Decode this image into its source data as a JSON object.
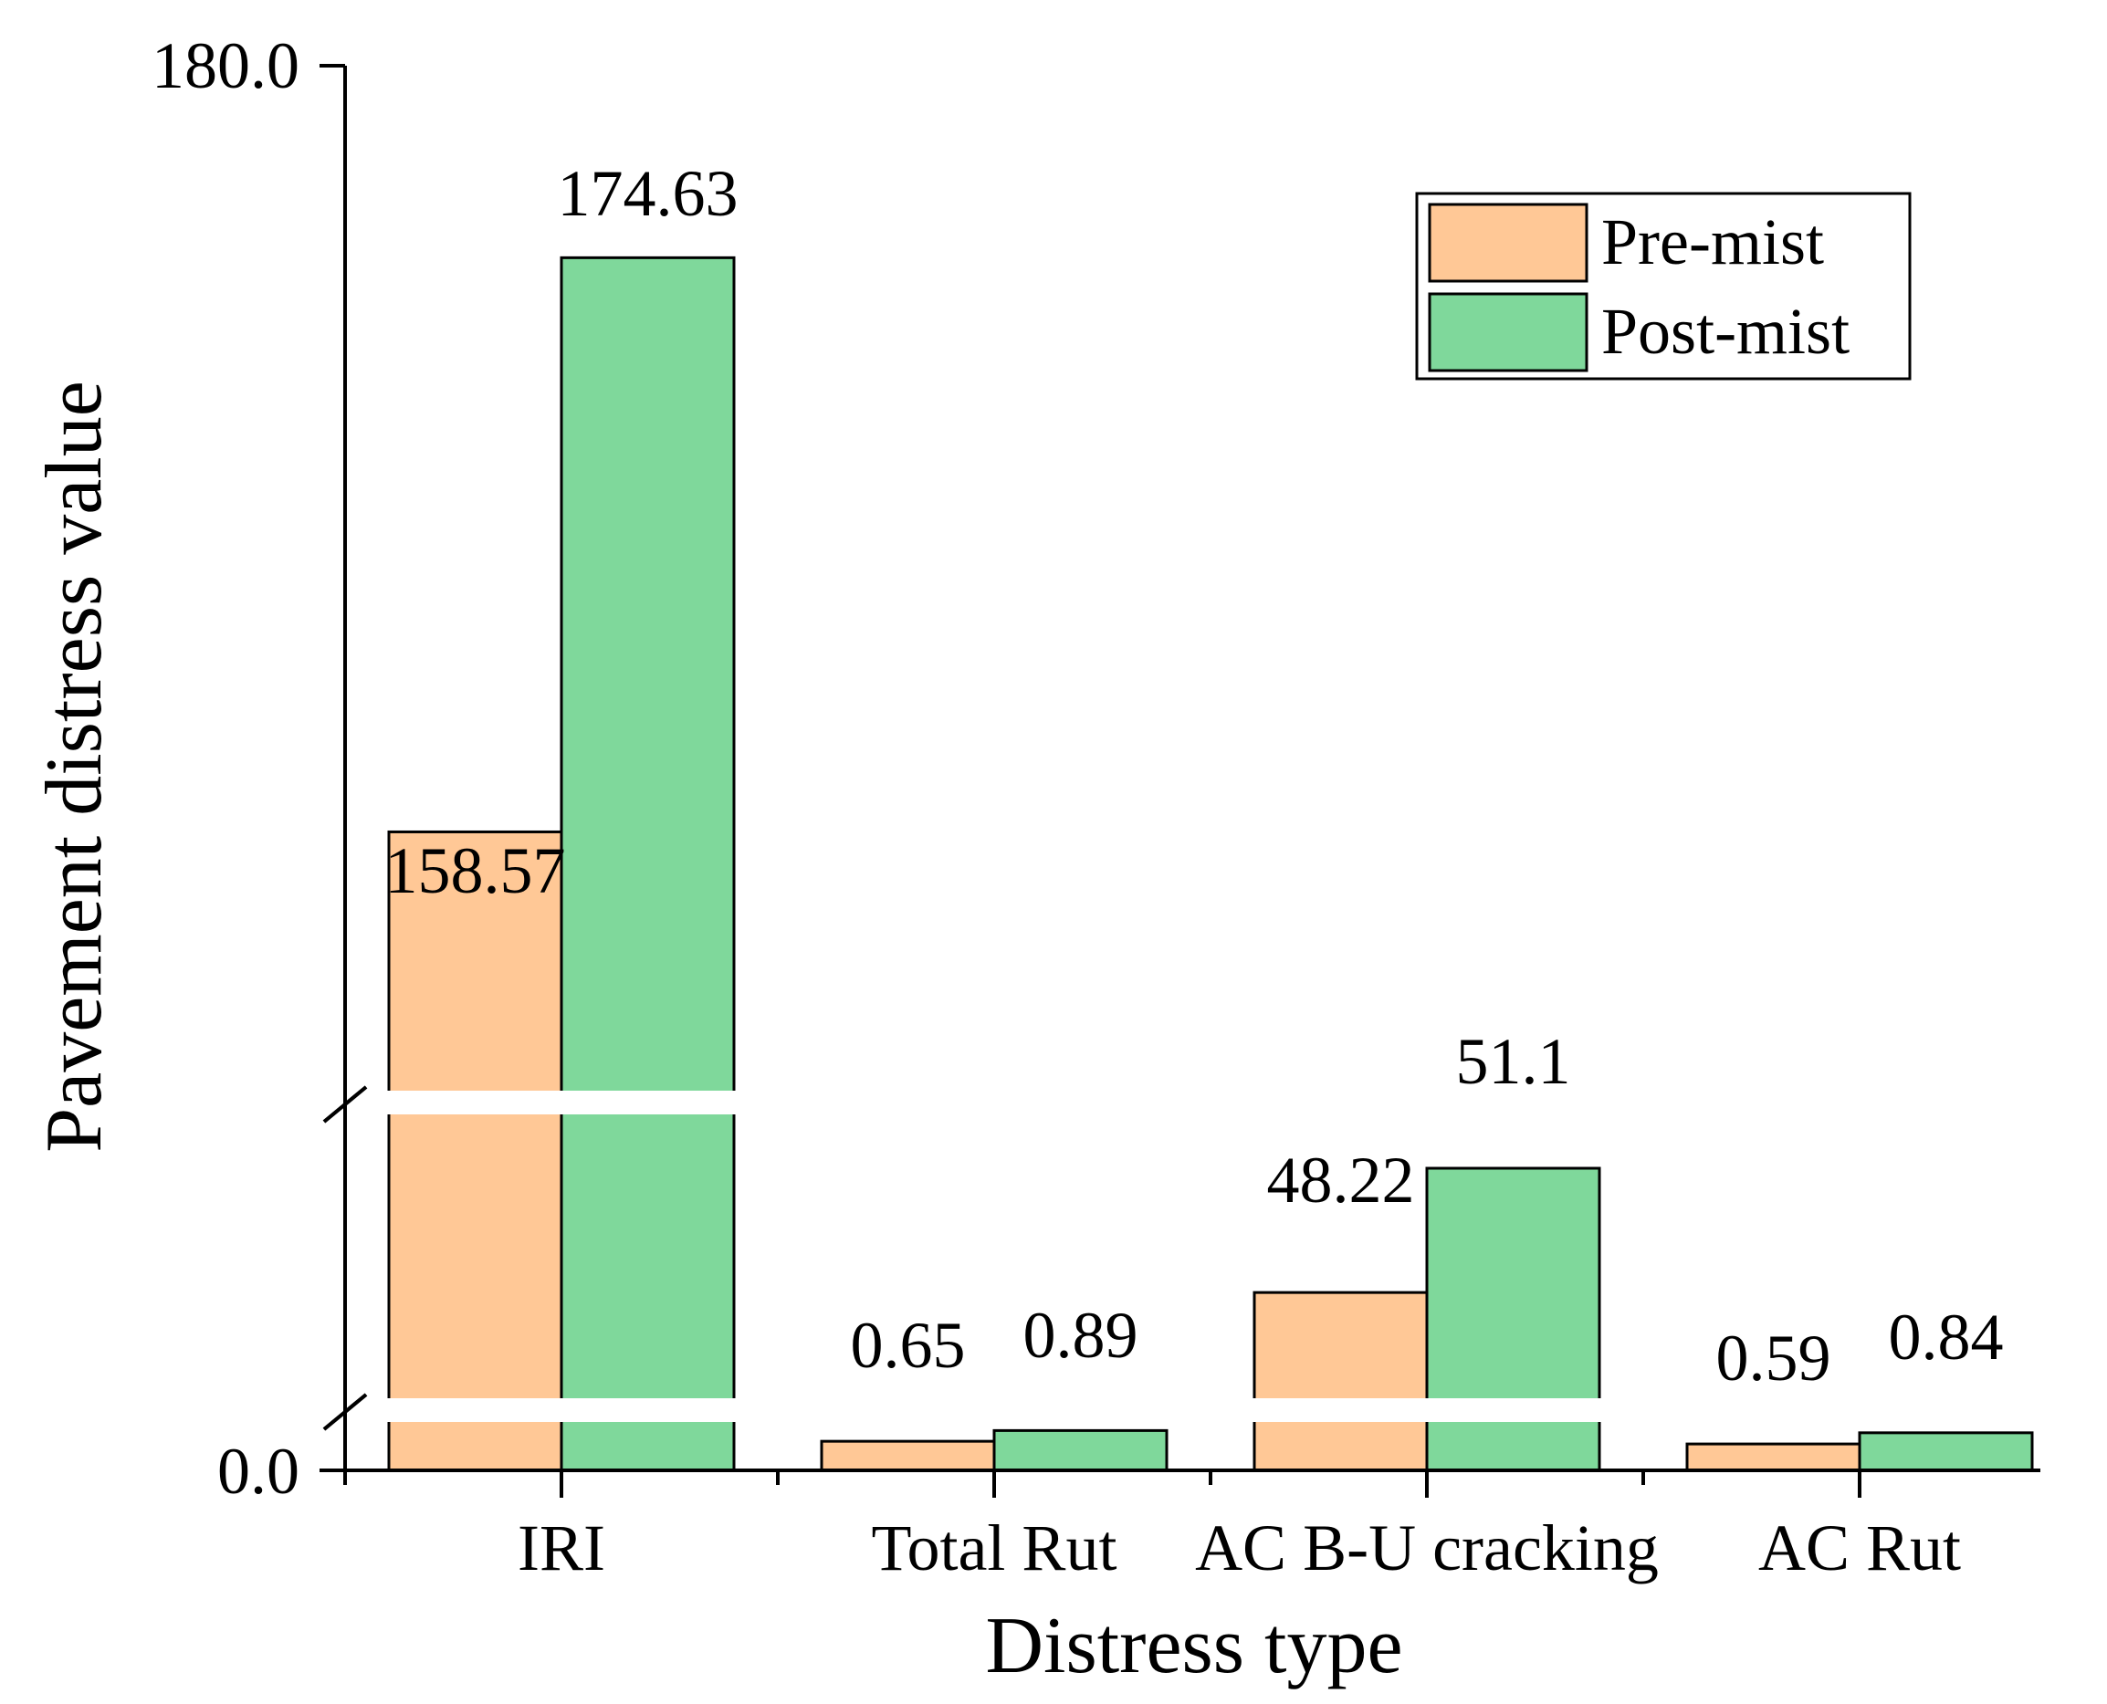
{
  "chart_data": {
    "type": "bar",
    "title": "",
    "xlabel": "Distress type",
    "ylabel": "Pavement distress value",
    "categories": [
      "IRI",
      "Total Rut",
      "AC B-U cracking",
      "AC Rut"
    ],
    "series": [
      {
        "name": "Pre-mist",
        "color": "#FFC896",
        "values": [
          158.57,
          0.65,
          48.22,
          0.59
        ]
      },
      {
        "name": "Post-mist",
        "color": "#7FD89B",
        "values": [
          174.63,
          0.89,
          51.1,
          0.84
        ]
      }
    ],
    "data_labels": [
      [
        "158.57",
        "0.65",
        "48.22",
        "0.59"
      ],
      [
        "174.63",
        "0.89",
        "51.1",
        "0.84"
      ]
    ],
    "y_tick_labels": [
      "0.0",
      "180.0"
    ],
    "ylim": [
      0,
      180
    ],
    "axis_breaks": 2,
    "grid": false,
    "legend_position": "top-right"
  }
}
